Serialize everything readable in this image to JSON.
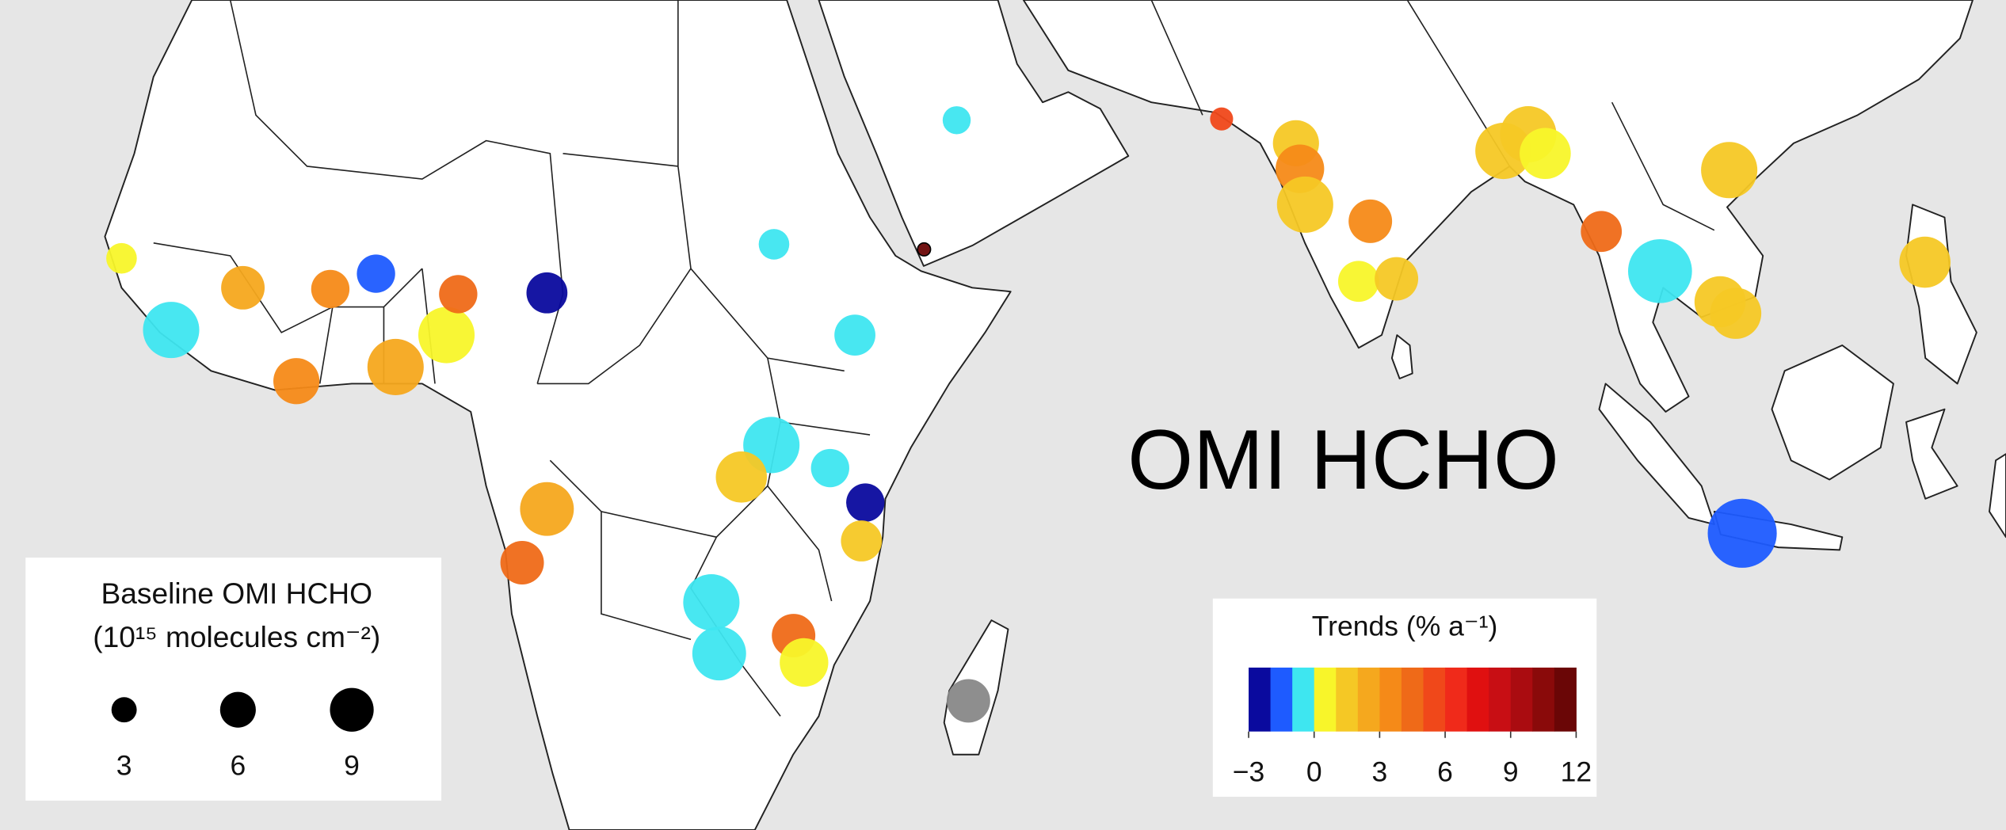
{
  "title": "OMI HCHO",
  "size_legend": {
    "title": "Baseline OMI HCHO",
    "subtitle": "(10¹⁵ molecules cm⁻²)",
    "values": [
      3,
      6,
      9
    ],
    "color": "#000000"
  },
  "trend_legend": {
    "title": "Trends (% a⁻¹)",
    "lim": [
      -3,
      12
    ],
    "ticks": [
      {
        "value": -3,
        "label": "−3"
      },
      0,
      3,
      6,
      9,
      12
    ],
    "colors": [
      "#0a0a9e",
      "#1e5bff",
      "#3ee6f0",
      "#f8f52a",
      "#f5c825",
      "#f5a81e",
      "#f58a18",
      "#ef6a18",
      "#f0481a",
      "#f02a1a",
      "#e01010",
      "#c80e14",
      "#aa0c10",
      "#8a0a0a",
      "#6a0606"
    ],
    "no_data_color": "#888888"
  },
  "sites": [
    {
      "lon": -17.0,
      "lat": 14.5,
      "trend": 0.5,
      "baseline": 4.4
    },
    {
      "lon": -13.2,
      "lat": 8.9,
      "trend": -0.5,
      "baseline": 14.9
    },
    {
      "lon": -7.7,
      "lat": 12.2,
      "trend": 2.5,
      "baseline": 8.9
    },
    {
      "lon": -3.6,
      "lat": 4.9,
      "trend": 3.5,
      "baseline": 10
    },
    {
      "lon": -1.0,
      "lat": 12.1,
      "trend": 3.5,
      "baseline": 6.9
    },
    {
      "lon": 2.5,
      "lat": 13.3,
      "trend": -1.5,
      "baseline": 6.9
    },
    {
      "lon": 4.0,
      "lat": 6.0,
      "trend": 2.5,
      "baseline": 14.9
    },
    {
      "lon": 7.9,
      "lat": 8.5,
      "trend": 0.5,
      "baseline": 14.9
    },
    {
      "lon": 8.8,
      "lat": 11.7,
      "trend": 4.5,
      "baseline": 6.9
    },
    {
      "lon": 15.6,
      "lat": 11.8,
      "trend": -2.5,
      "baseline": 7.9
    },
    {
      "lon": 47.0,
      "lat": 25.3,
      "trend": -0.5,
      "baseline": 3.7
    },
    {
      "lon": 33.0,
      "lat": 15.6,
      "trend": -0.5,
      "baseline": 4.4
    },
    {
      "lon": 39.2,
      "lat": 8.5,
      "trend": -0.5,
      "baseline": 7.9
    },
    {
      "lon": 44.5,
      "lat": 15.2,
      "trend": 11.5,
      "baseline": 0.8
    },
    {
      "lon": 67.3,
      "lat": 25.4,
      "trend": 5.5,
      "baseline": 2.5
    },
    {
      "lon": 73.0,
      "lat": 23.5,
      "trend": 1.5,
      "baseline": 10
    },
    {
      "lon": 73.3,
      "lat": 21.5,
      "trend": 3.5,
      "baseline": 11.1
    },
    {
      "lon": 73.7,
      "lat": 18.7,
      "trend": 1.5,
      "baseline": 14.9
    },
    {
      "lon": 78.7,
      "lat": 17.4,
      "trend": 3.5,
      "baseline": 8.9
    },
    {
      "lon": 77.8,
      "lat": 12.7,
      "trend": 0.5,
      "baseline": 7.9
    },
    {
      "lon": 80.7,
      "lat": 12.9,
      "trend": 1.5,
      "baseline": 8.9
    },
    {
      "lon": 88.9,
      "lat": 22.9,
      "trend": 1.5,
      "baseline": 14.9
    },
    {
      "lon": 90.8,
      "lat": 24.2,
      "trend": 1.5,
      "baseline": 14.9
    },
    {
      "lon": 92.1,
      "lat": 22.7,
      "trend": 0.5,
      "baseline": 12.3
    },
    {
      "lon": 96.4,
      "lat": 16.6,
      "trend": 4.5,
      "baseline": 7.9
    },
    {
      "lon": 100.9,
      "lat": 13.5,
      "trend": -0.5,
      "baseline": 19.2
    },
    {
      "lon": 105.5,
      "lat": 11.1,
      "trend": 1.5,
      "baseline": 12.3
    },
    {
      "lon": 106.7,
      "lat": 10.2,
      "trend": 1.5,
      "baseline": 12.3
    },
    {
      "lon": 106.2,
      "lat": 21.4,
      "trend": 1.5,
      "baseline": 14.9
    },
    {
      "lon": 121.2,
      "lat": 14.2,
      "trend": 1.5,
      "baseline": 12.3
    },
    {
      "lon": 107.2,
      "lat": -7.0,
      "trend": -1.5,
      "baseline": 22.4
    },
    {
      "lon": 32.8,
      "lat": -0.1,
      "trend": -0.5,
      "baseline": 14.9
    },
    {
      "lon": 30.5,
      "lat": -2.6,
      "trend": 1.5,
      "baseline": 12.3
    },
    {
      "lon": 37.3,
      "lat": -1.9,
      "trend": -0.5,
      "baseline": 6.9
    },
    {
      "lon": 40.0,
      "lat": -4.6,
      "trend": -2.5,
      "baseline": 6.9
    },
    {
      "lon": 39.7,
      "lat": -7.6,
      "trend": 1.5,
      "baseline": 7.9
    },
    {
      "lon": 15.6,
      "lat": -5.1,
      "trend": 2.5,
      "baseline": 13.6
    },
    {
      "lon": 13.7,
      "lat": -9.3,
      "trend": 4.5,
      "baseline": 8.9
    },
    {
      "lon": 28.2,
      "lat": -12.4,
      "trend": -0.5,
      "baseline": 14.9
    },
    {
      "lon": 28.8,
      "lat": -16.4,
      "trend": -0.5,
      "baseline": 13.6
    },
    {
      "lon": 34.5,
      "lat": -15.0,
      "trend": 4.5,
      "baseline": 8.9
    },
    {
      "lon": 35.3,
      "lat": -17.1,
      "trend": 0.5,
      "baseline": 11.1
    },
    {
      "lon": 47.9,
      "lat": -20.1,
      "trend": null,
      "baseline": 8.9
    }
  ]
}
